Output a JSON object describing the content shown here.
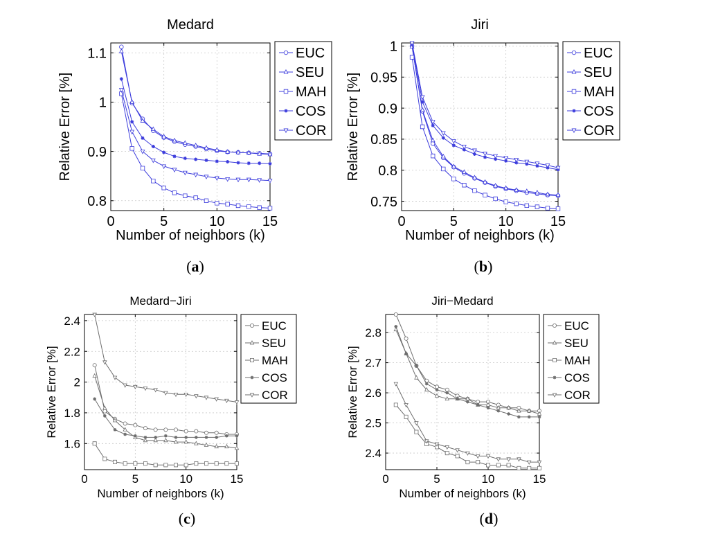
{
  "chart_data": [
    {
      "panel": "(a)",
      "type": "line",
      "title": "Medard",
      "xlabel": "Number of neighbors (k)",
      "ylabel": "Relative Error [%]",
      "xlim": [
        0,
        15
      ],
      "ylim": [
        0.78,
        1.12
      ],
      "xticks": [
        0,
        5,
        10,
        15
      ],
      "xtick_labels": [
        "0",
        "5",
        "10",
        "15"
      ],
      "yticks": [
        0.8,
        0.9,
        1.0,
        1.1
      ],
      "ytick_labels": [
        "0.8",
        "0.9",
        "1",
        "1.1"
      ],
      "grid": true,
      "legend_position": "outside-right",
      "color": "#3b3bdc",
      "x": [
        1,
        2,
        3,
        4,
        5,
        6,
        7,
        8,
        9,
        10,
        11,
        12,
        13,
        14,
        15
      ],
      "series": [
        {
          "name": "EUC",
          "marker": "circle",
          "values": [
            1.112,
            0.998,
            0.966,
            0.942,
            0.928,
            0.92,
            0.914,
            0.91,
            0.905,
            0.901,
            0.899,
            0.898,
            0.897,
            0.896,
            0.895
          ]
        },
        {
          "name": "SEU",
          "marker": "triangle-up",
          "values": [
            1.103,
            1.0,
            0.962,
            0.945,
            0.93,
            0.922,
            0.917,
            0.912,
            0.907,
            0.903,
            0.899,
            0.898,
            0.897,
            0.895,
            0.894
          ]
        },
        {
          "name": "MAH",
          "marker": "square",
          "values": [
            1.017,
            0.906,
            0.866,
            0.84,
            0.826,
            0.816,
            0.81,
            0.806,
            0.8,
            0.795,
            0.793,
            0.79,
            0.788,
            0.786,
            0.785
          ]
        },
        {
          "name": "COS",
          "marker": "star",
          "values": [
            1.047,
            0.96,
            0.927,
            0.91,
            0.898,
            0.89,
            0.886,
            0.884,
            0.882,
            0.88,
            0.879,
            0.877,
            0.876,
            0.876,
            0.875
          ]
        },
        {
          "name": "COR",
          "marker": "triangle-down",
          "values": [
            1.025,
            0.94,
            0.9,
            0.882,
            0.87,
            0.863,
            0.857,
            0.853,
            0.849,
            0.846,
            0.844,
            0.843,
            0.843,
            0.842,
            0.841
          ]
        }
      ]
    },
    {
      "panel": "(b)",
      "type": "line",
      "title": "Jiri",
      "xlabel": "Number of neighbors (k)",
      "ylabel": "Relative Error [%]",
      "xlim": [
        0,
        15
      ],
      "ylim": [
        0.735,
        1.005
      ],
      "xticks": [
        0,
        5,
        10,
        15
      ],
      "xtick_labels": [
        "0",
        "5",
        "10",
        "15"
      ],
      "yticks": [
        0.75,
        0.8,
        0.85,
        0.9,
        0.95,
        1.0
      ],
      "ytick_labels": [
        "0.75",
        "0.8",
        "0.85",
        "0.9",
        "0.95",
        "1"
      ],
      "grid": true,
      "legend_position": "outside-right",
      "color": "#3b3bdc",
      "x": [
        1,
        2,
        3,
        4,
        5,
        6,
        7,
        8,
        9,
        10,
        11,
        12,
        13,
        14,
        15
      ],
      "series": [
        {
          "name": "EUC",
          "marker": "circle",
          "values": [
            1.0,
            0.895,
            0.843,
            0.82,
            0.805,
            0.795,
            0.787,
            0.78,
            0.774,
            0.77,
            0.767,
            0.764,
            0.762,
            0.76,
            0.759
          ]
        },
        {
          "name": "SEU",
          "marker": "triangle-up",
          "values": [
            0.999,
            0.897,
            0.848,
            0.822,
            0.806,
            0.797,
            0.788,
            0.781,
            0.775,
            0.771,
            0.768,
            0.766,
            0.764,
            0.761,
            0.76
          ]
        },
        {
          "name": "MAH",
          "marker": "square",
          "values": [
            0.982,
            0.87,
            0.823,
            0.802,
            0.786,
            0.776,
            0.767,
            0.76,
            0.754,
            0.749,
            0.746,
            0.743,
            0.741,
            0.739,
            0.738
          ]
        },
        {
          "name": "COS",
          "marker": "star",
          "values": [
            1.003,
            0.91,
            0.872,
            0.852,
            0.84,
            0.833,
            0.826,
            0.821,
            0.818,
            0.815,
            0.812,
            0.81,
            0.807,
            0.804,
            0.801
          ]
        },
        {
          "name": "COR",
          "marker": "triangle-down",
          "values": [
            1.005,
            0.918,
            0.878,
            0.86,
            0.847,
            0.838,
            0.832,
            0.827,
            0.823,
            0.82,
            0.817,
            0.814,
            0.811,
            0.808,
            0.804
          ]
        }
      ]
    },
    {
      "panel": "(c)",
      "type": "line",
      "title": "Medard−Jiri",
      "xlabel": "Number of neighbors (k)",
      "ylabel": "Relative Error [%]",
      "xlim": [
        0,
        15
      ],
      "ylim": [
        1.43,
        2.44
      ],
      "xticks": [
        0,
        5,
        10,
        15
      ],
      "xtick_labels": [
        "0",
        "5",
        "10",
        "15"
      ],
      "yticks": [
        1.6,
        1.8,
        2.0,
        2.2,
        2.4
      ],
      "ytick_labels": [
        "1.6",
        "1.8",
        "2",
        "2.2",
        "2.4"
      ],
      "grid": true,
      "legend_position": "outside-right",
      "color": "#6e6e6e",
      "x": [
        1,
        2,
        3,
        4,
        5,
        6,
        7,
        8,
        9,
        10,
        11,
        12,
        13,
        14,
        15
      ],
      "series": [
        {
          "name": "EUC",
          "marker": "circle",
          "values": [
            2.11,
            1.81,
            1.76,
            1.73,
            1.72,
            1.7,
            1.69,
            1.69,
            1.69,
            1.68,
            1.68,
            1.67,
            1.67,
            1.66,
            1.66
          ]
        },
        {
          "name": "SEU",
          "marker": "triangle-up",
          "values": [
            2.04,
            1.83,
            1.75,
            1.69,
            1.64,
            1.62,
            1.62,
            1.62,
            1.61,
            1.61,
            1.6,
            1.59,
            1.58,
            1.58,
            1.57
          ]
        },
        {
          "name": "MAH",
          "marker": "square",
          "values": [
            1.6,
            1.5,
            1.48,
            1.47,
            1.47,
            1.47,
            1.46,
            1.46,
            1.46,
            1.46,
            1.47,
            1.47,
            1.47,
            1.47,
            1.47
          ]
        },
        {
          "name": "COS",
          "marker": "star",
          "values": [
            1.89,
            1.78,
            1.69,
            1.66,
            1.65,
            1.64,
            1.64,
            1.65,
            1.64,
            1.64,
            1.64,
            1.64,
            1.64,
            1.65,
            1.65
          ]
        },
        {
          "name": "COR",
          "marker": "triangle-down",
          "values": [
            2.44,
            2.13,
            2.03,
            1.98,
            1.97,
            1.96,
            1.95,
            1.93,
            1.92,
            1.92,
            1.91,
            1.9,
            1.89,
            1.88,
            1.87
          ]
        }
      ]
    },
    {
      "panel": "(d)",
      "type": "line",
      "title": "Jiri−Medard",
      "xlabel": "Number of neighbors (k)",
      "ylabel": "Relative Error [%]",
      "xlim": [
        0,
        15
      ],
      "ylim": [
        2.345,
        2.86
      ],
      "xticks": [
        0,
        5,
        10,
        15
      ],
      "xtick_labels": [
        "0",
        "5",
        "10",
        "15"
      ],
      "yticks": [
        2.4,
        2.5,
        2.6,
        2.7,
        2.8
      ],
      "ytick_labels": [
        "2.4",
        "2.5",
        "2.6",
        "2.7",
        "2.8"
      ],
      "grid": true,
      "legend_position": "outside-right",
      "color": "#6e6e6e",
      "x": [
        1,
        2,
        3,
        4,
        5,
        6,
        7,
        8,
        9,
        10,
        11,
        12,
        13,
        14,
        15
      ],
      "series": [
        {
          "name": "EUC",
          "marker": "circle",
          "values": [
            2.86,
            2.78,
            2.69,
            2.64,
            2.62,
            2.61,
            2.59,
            2.58,
            2.57,
            2.57,
            2.56,
            2.55,
            2.55,
            2.54,
            2.54
          ]
        },
        {
          "name": "SEU",
          "marker": "triangle-up",
          "values": [
            2.81,
            2.73,
            2.65,
            2.61,
            2.59,
            2.58,
            2.58,
            2.58,
            2.56,
            2.56,
            2.55,
            2.55,
            2.54,
            2.54,
            2.53
          ]
        },
        {
          "name": "MAH",
          "marker": "square",
          "values": [
            2.56,
            2.52,
            2.47,
            2.43,
            2.42,
            2.4,
            2.39,
            2.37,
            2.37,
            2.36,
            2.36,
            2.36,
            2.35,
            2.35,
            2.35
          ]
        },
        {
          "name": "COS",
          "marker": "star",
          "values": [
            2.82,
            2.73,
            2.69,
            2.63,
            2.61,
            2.6,
            2.58,
            2.57,
            2.56,
            2.55,
            2.54,
            2.53,
            2.52,
            2.52,
            2.52
          ]
        },
        {
          "name": "COR",
          "marker": "triangle-down",
          "values": [
            2.63,
            2.56,
            2.5,
            2.44,
            2.43,
            2.42,
            2.41,
            2.4,
            2.39,
            2.39,
            2.38,
            2.38,
            2.38,
            2.37,
            2.37
          ]
        }
      ]
    }
  ]
}
